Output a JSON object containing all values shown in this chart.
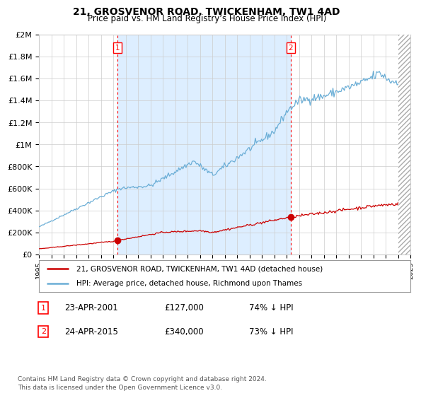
{
  "title": "21, GROSVENOR ROAD, TWICKENHAM, TW1 4AD",
  "subtitle": "Price paid vs. HM Land Registry’s House Price Index (HPI)",
  "ylim": [
    0,
    2000000
  ],
  "yticks": [
    0,
    200000,
    400000,
    600000,
    800000,
    1000000,
    1200000,
    1400000,
    1600000,
    1800000,
    2000000
  ],
  "ytick_labels": [
    "£0",
    "£200K",
    "£400K",
    "£600K",
    "£800K",
    "£1M",
    "£1.2M",
    "£1.4M",
    "£1.6M",
    "£1.8M",
    "£2M"
  ],
  "hpi_color": "#6baed6",
  "price_color": "#cc0000",
  "sale1_year": 2001.31,
  "sale1_price": 127000,
  "sale2_year": 2015.31,
  "sale2_price": 340000,
  "legend_label1": "21, GROSVENOR ROAD, TWICKENHAM, TW1 4AD (detached house)",
  "legend_label2": "HPI: Average price, detached house, Richmond upon Thames",
  "annotation1": [
    "1",
    "23-APR-2001",
    "£127,000",
    "74% ↓ HPI"
  ],
  "annotation2": [
    "2",
    "24-APR-2015",
    "£340,000",
    "73% ↓ HPI"
  ],
  "footer": "Contains HM Land Registry data © Crown copyright and database right 2024.\nThis data is licensed under the Open Government Licence v3.0.",
  "bg_color": "#ffffff",
  "grid_color": "#cccccc",
  "shade_color": "#ddeeff",
  "xlim": [
    1995,
    2025
  ]
}
